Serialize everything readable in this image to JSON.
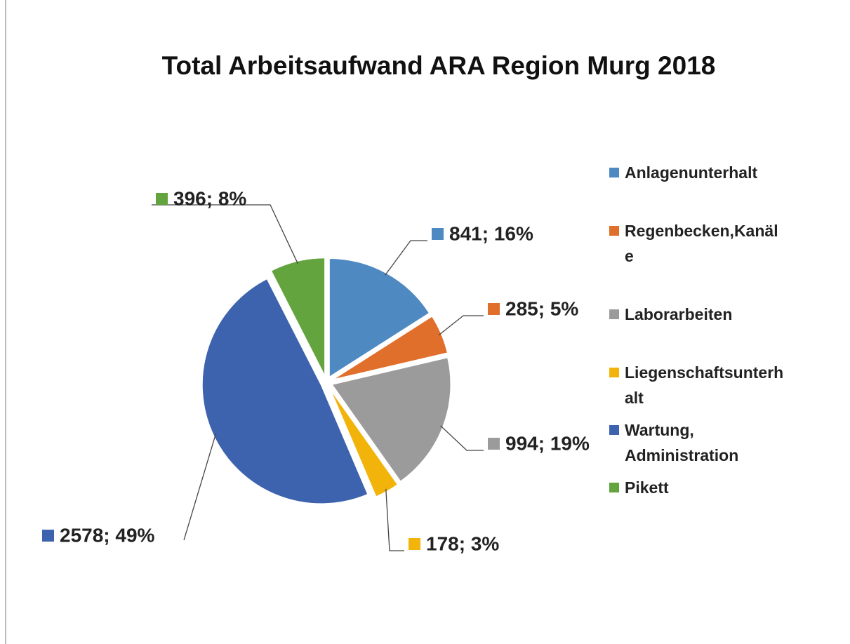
{
  "chart_data": {
    "type": "pie",
    "title": "Total Arbeitsaufwand ARA Region Murg 2018",
    "categories": [
      "Anlagenunterhalt",
      "Regenbecken,Kanäle",
      "Laborarbeiten",
      "Liegenschaftsunterhalt",
      "Wartung, Administration",
      "Pikett"
    ],
    "values": [
      841,
      285,
      994,
      178,
      2578,
      396
    ],
    "value_labels": [
      "841; 16%",
      "285; 5%",
      "994; 19%",
      "178; 3%",
      "2578; 49%",
      "396; 8%"
    ],
    "colors": [
      "#4f89c2",
      "#e06f2b",
      "#9b9b9b",
      "#f2b30a",
      "#3d63ae",
      "#63a43f"
    ],
    "legend": "right"
  }
}
